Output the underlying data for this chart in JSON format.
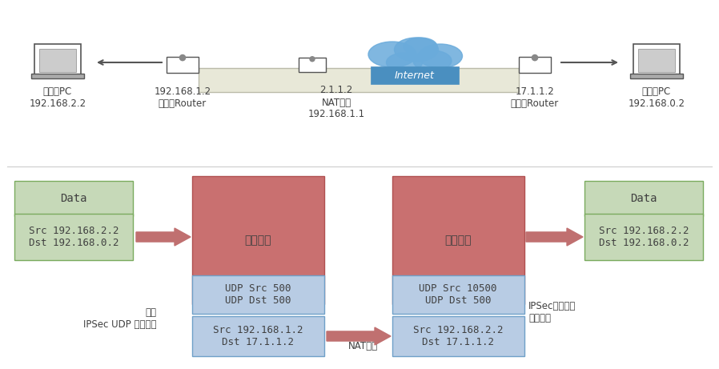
{
  "bg_color": "#ffffff",
  "top_section": {
    "pc_left_label": "发送方PC\n192.168.2.2",
    "router_left_label": "192.168.1.2\n发送方Router",
    "nat_label": "2.1.1.2\nNAT网关\n192.168.1.1",
    "router_right_label": "17.1.1.2\n响应方Router",
    "pc_right_label": "响应方PC\n192.168.0.2"
  },
  "bottom_section": {
    "data_box_left": "Data",
    "src_dst_left": "Src 192.168.2.2\nDst 192.168.0.2",
    "encrypt_left": "加密数据",
    "encrypt_right": "加密数据",
    "data_box_right": "Data",
    "src_dst_right": "Src 192.168.2.2\nDst 192.168.0.2",
    "udp_left_top": "UDP Src 500\nUDP Dst 500",
    "udp_right_top": "UDP Src 10500\nUDP Dst 500",
    "ip_left_bot": "Src 192.168.1.2\nDst 17.1.1.2",
    "ip_right_bot": "Src 192.168.2.2\nDst 17.1.1.2",
    "label_left": "加密\nIPSec UDP 隧道封装",
    "label_mid": "NAT转换",
    "label_right": "IPSec隧道终结\n数据解密"
  },
  "colors": {
    "green_box": "#c6d9b8",
    "green_border": "#7aab5e",
    "red_box": "#c97070",
    "red_border": "#b05050",
    "blue_box": "#b8cce4",
    "blue_border": "#6fa0c8",
    "arrow_red": "#c07070",
    "text_dark": "#404040",
    "internet_blue": "#4a8fc0",
    "cloud_blue": "#6aabdb",
    "tunnel_box": "#e8e8d8",
    "tunnel_border": "#bbbbaa"
  }
}
